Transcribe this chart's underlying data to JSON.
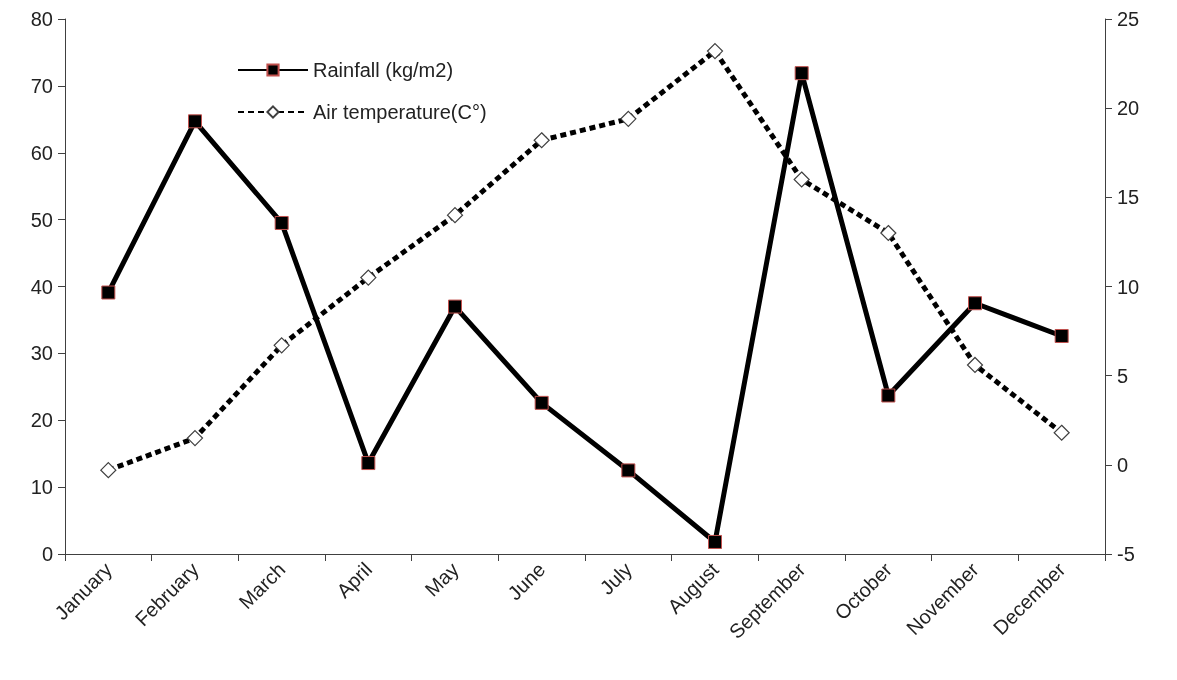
{
  "chart_data": {
    "type": "line",
    "categories": [
      "January",
      "February",
      "March",
      "April",
      "May",
      "June",
      "July",
      "August",
      "September",
      "October",
      "November",
      "December"
    ],
    "series": [
      {
        "name": "Rainfall (kg/m2)",
        "color": "#000000",
        "marker": "square",
        "line_style": "solid",
        "values": [
          39.1,
          64.7,
          49.5,
          13.6,
          37.0,
          22.6,
          12.5,
          1.8,
          71.9,
          23.7,
          37.5,
          32.6
        ]
      },
      {
        "name": "Air temperature(C°)",
        "color": "#000000",
        "marker": "diamond",
        "line_style": "dashed",
        "axis": "y2",
        "values": [
          -0.3,
          1.5,
          6.7,
          10.5,
          14.0,
          18.2,
          19.4,
          23.2,
          16.0,
          13.0,
          5.6,
          1.8
        ]
      }
    ],
    "ylim": [
      0,
      80
    ],
    "yticks": [
      0,
      10,
      20,
      30,
      40,
      50,
      60,
      70,
      80
    ],
    "y2lim": [
      -5,
      25
    ],
    "y2ticks": [
      -5,
      0,
      5,
      10,
      15,
      20,
      25
    ],
    "grid": false,
    "legend": "top left"
  }
}
